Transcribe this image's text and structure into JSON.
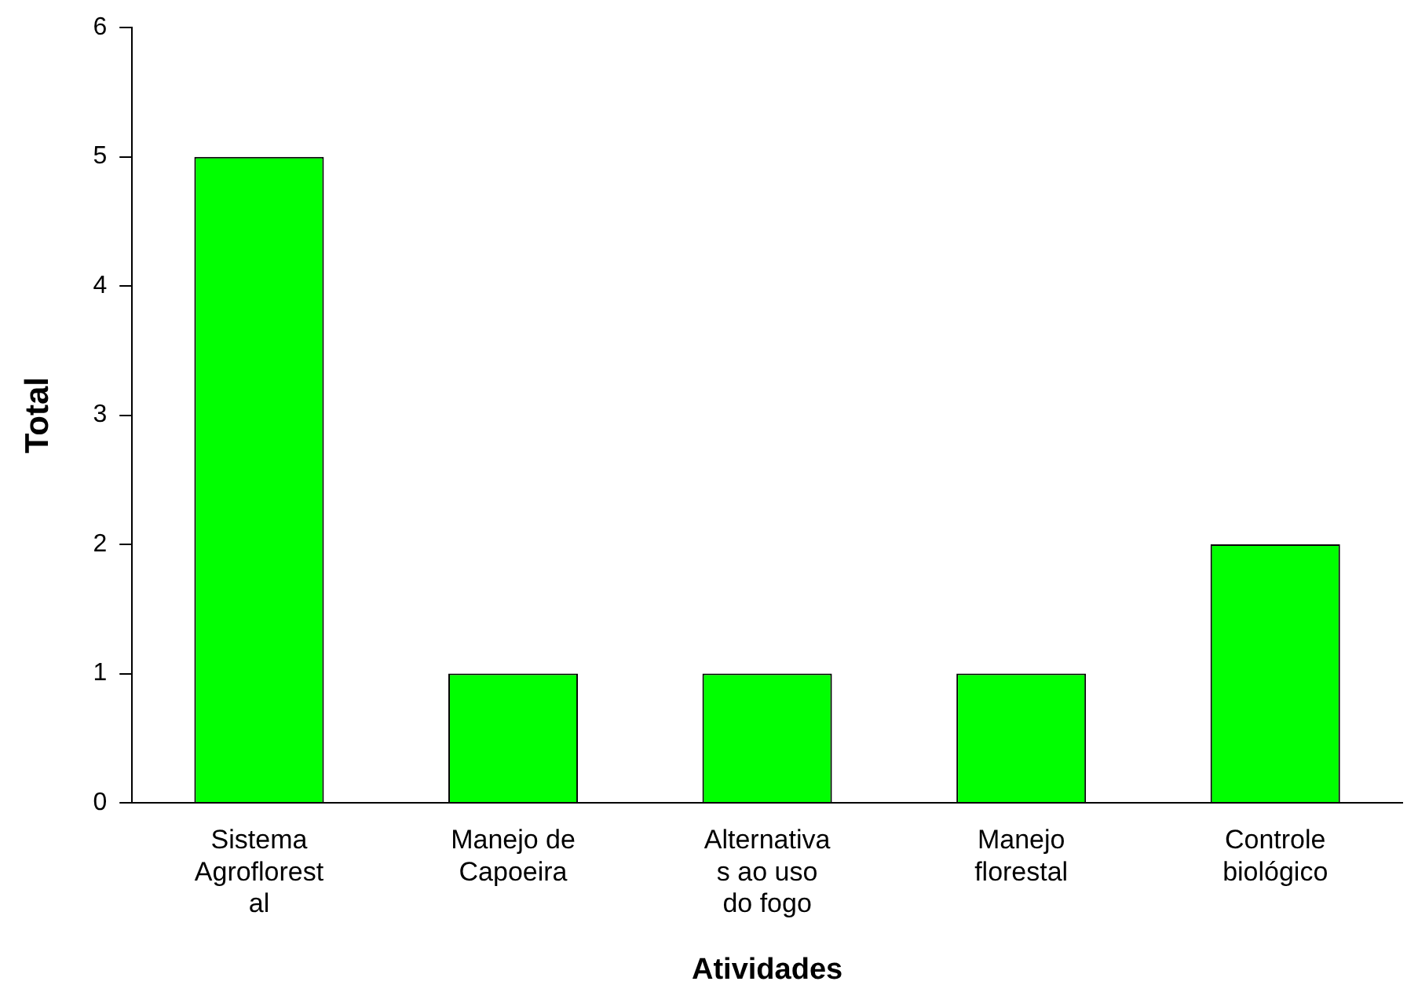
{
  "chart_data": {
    "type": "bar",
    "xlabel": "Atividades",
    "ylabel": "Total",
    "categories": [
      "Sistema\nAgroflorest\nal",
      "Manejo de\nCapoeira",
      "Alternativa\ns ao uso\ndo fogo",
      "Manejo\nflorestal",
      "Controle\nbiológico"
    ],
    "values": [
      5,
      1,
      1,
      1,
      2
    ],
    "color": "#00ff00",
    "ylim": [
      0,
      6
    ],
    "yticks": [
      0,
      1,
      2,
      3,
      4,
      5,
      6
    ],
    "grid": false,
    "legend": false
  }
}
